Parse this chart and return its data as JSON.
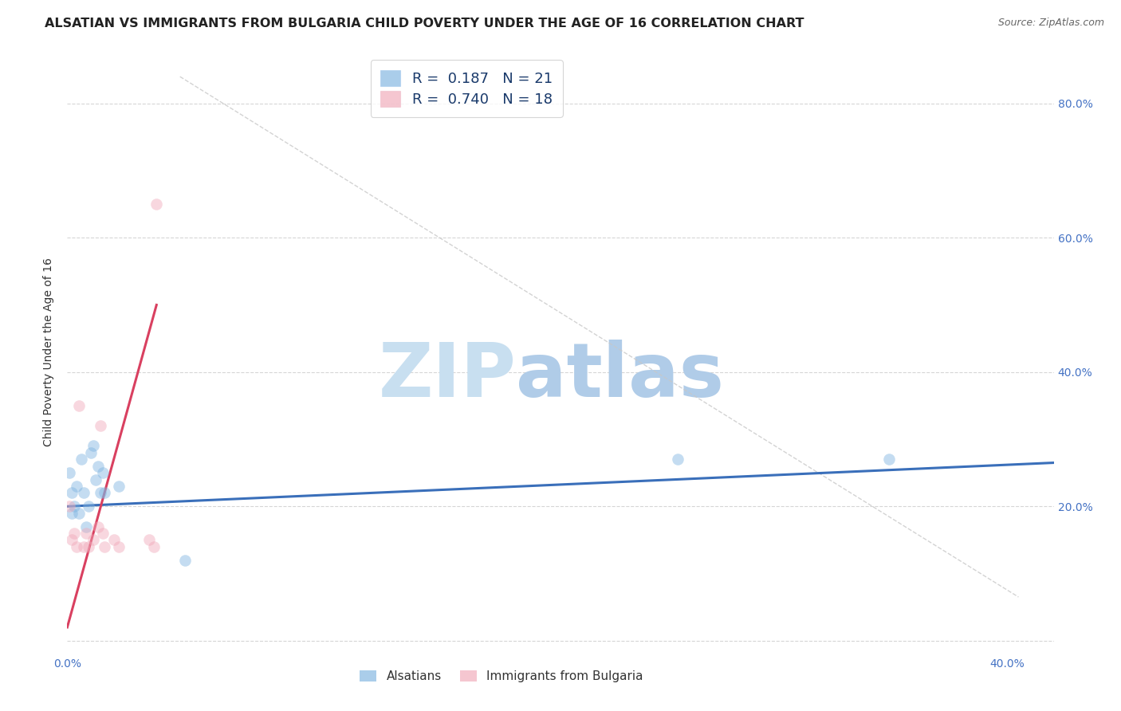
{
  "title": "ALSATIAN VS IMMIGRANTS FROM BULGARIA CHILD POVERTY UNDER THE AGE OF 16 CORRELATION CHART",
  "source": "Source: ZipAtlas.com",
  "tick_color": "#4472c4",
  "ylabel": "Child Poverty Under the Age of 16",
  "xlim": [
    0.0,
    0.42
  ],
  "ylim": [
    -0.02,
    0.88
  ],
  "background_color": "#ffffff",
  "grid_color": "#cccccc",
  "watermark_zip": "ZIP",
  "watermark_atlas": "atlas",
  "watermark_zip_color": "#c8dff0",
  "watermark_atlas_color": "#b0cce8",
  "blue_color": "#7db3e0",
  "pink_color": "#f0a8b8",
  "blue_line_color": "#3a6fba",
  "pink_line_color": "#d94060",
  "dashed_line_color": "#c8c8c8",
  "legend_R1": "0.187",
  "legend_N1": "21",
  "legend_R2": "0.740",
  "legend_N2": "18",
  "legend_label1": "Alsatians",
  "legend_label2": "Immigrants from Bulgaria",
  "alsatian_x": [
    0.001,
    0.002,
    0.002,
    0.003,
    0.004,
    0.005,
    0.006,
    0.007,
    0.008,
    0.009,
    0.01,
    0.011,
    0.012,
    0.013,
    0.014,
    0.015,
    0.016,
    0.022,
    0.05,
    0.26,
    0.35
  ],
  "alsatian_y": [
    0.25,
    0.22,
    0.19,
    0.2,
    0.23,
    0.19,
    0.27,
    0.22,
    0.17,
    0.2,
    0.28,
    0.29,
    0.24,
    0.26,
    0.22,
    0.25,
    0.22,
    0.23,
    0.12,
    0.27,
    0.27
  ],
  "bulgaria_x": [
    0.001,
    0.002,
    0.003,
    0.004,
    0.005,
    0.007,
    0.008,
    0.009,
    0.011,
    0.013,
    0.014,
    0.015,
    0.016,
    0.02,
    0.022,
    0.035,
    0.037,
    0.038
  ],
  "bulgaria_y": [
    0.2,
    0.15,
    0.16,
    0.14,
    0.35,
    0.14,
    0.16,
    0.14,
    0.15,
    0.17,
    0.32,
    0.16,
    0.14,
    0.15,
    0.14,
    0.15,
    0.14,
    0.65
  ],
  "blue_trendline_x": [
    0.0,
    0.42
  ],
  "blue_trendline_y": [
    0.2,
    0.265
  ],
  "pink_trendline_x": [
    0.0,
    0.038
  ],
  "pink_trendline_y": [
    0.02,
    0.5
  ],
  "dashed_trendline_x": [
    0.048,
    0.405
  ],
  "dashed_trendline_y": [
    0.84,
    0.065
  ],
  "marker_size": 110,
  "marker_alpha": 0.45,
  "title_fontsize": 11.5,
  "axis_label_fontsize": 10,
  "tick_fontsize": 10,
  "legend_fontsize": 13
}
